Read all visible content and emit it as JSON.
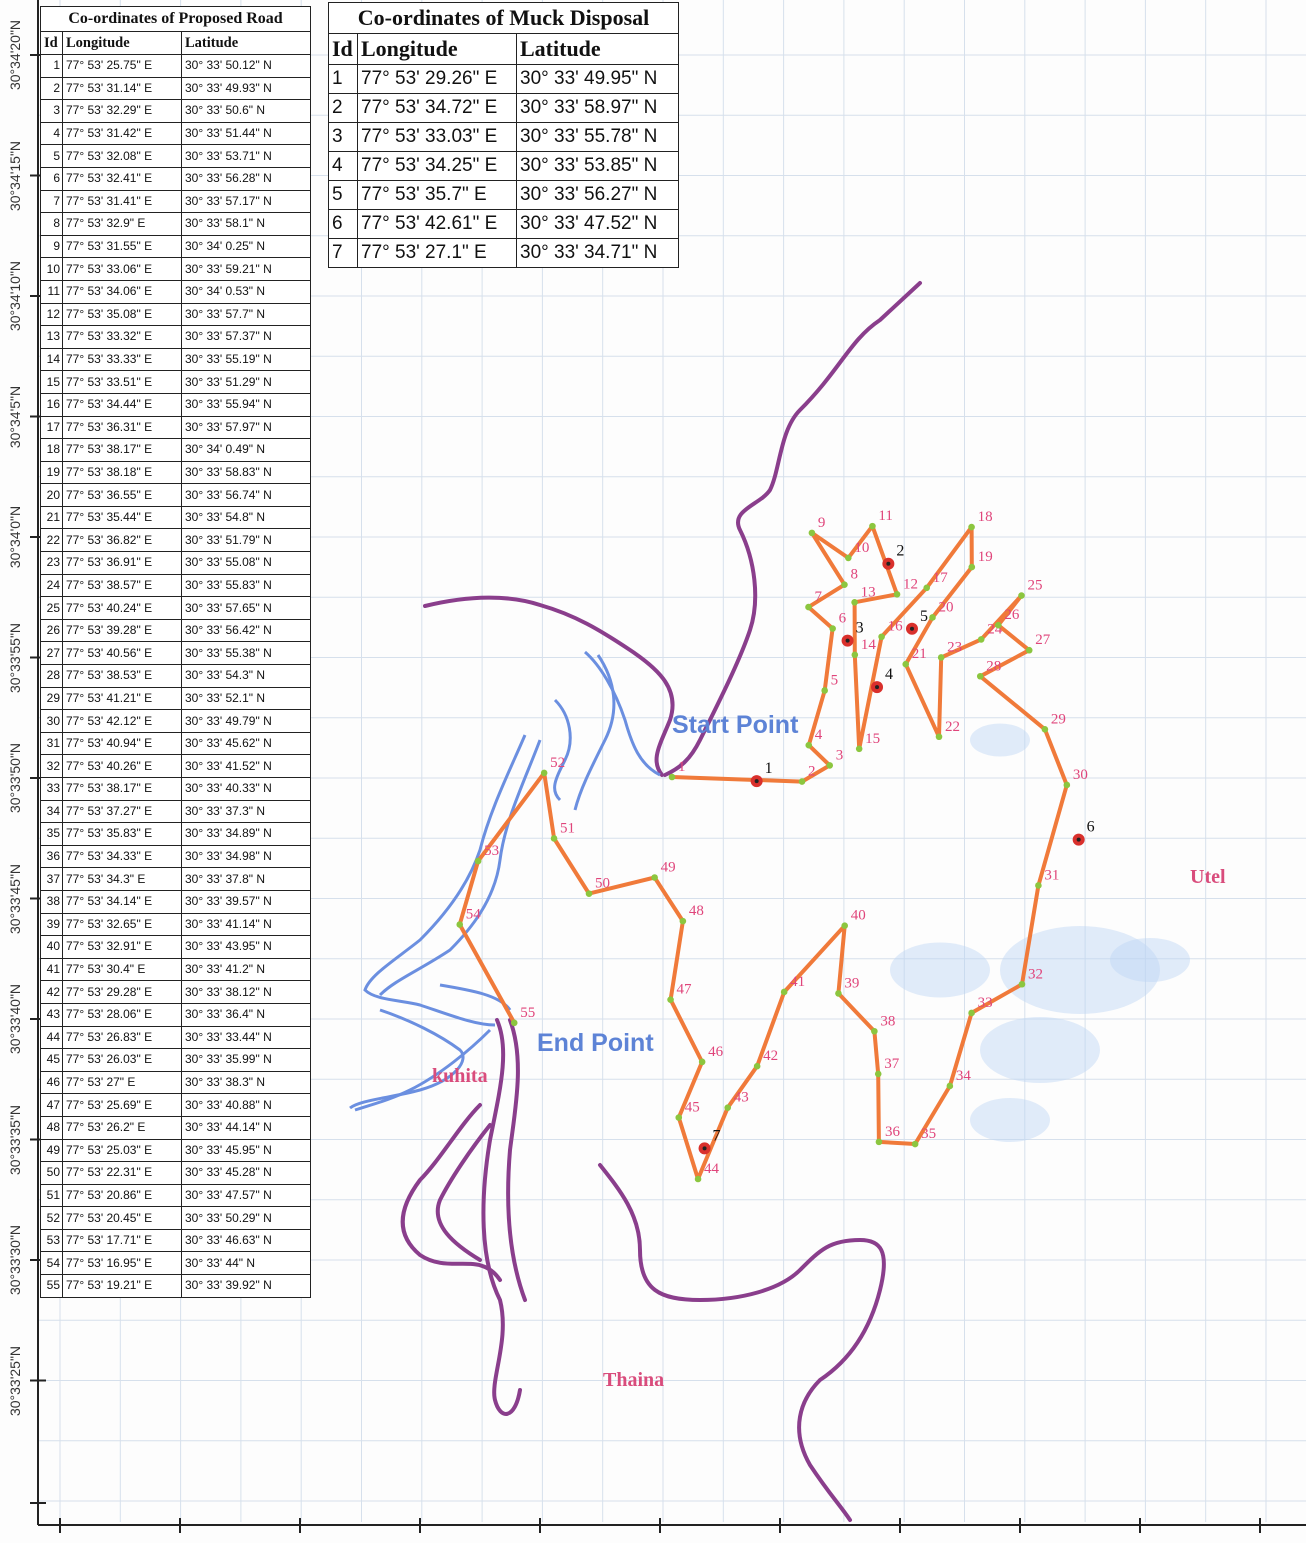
{
  "road_table": {
    "title": "Co-ordinates of Proposed Road",
    "headers": [
      "Id",
      "Longitude",
      "Latitude"
    ],
    "rows": [
      [
        "1",
        "77° 53' 25.75\" E",
        "30° 33' 50.12\" N"
      ],
      [
        "2",
        "77° 53' 31.14\" E",
        "30° 33' 49.93\" N"
      ],
      [
        "3",
        "77° 53' 32.29\" E",
        "30° 33' 50.6\" N"
      ],
      [
        "4",
        "77° 53' 31.42\" E",
        "30° 33' 51.44\" N"
      ],
      [
        "5",
        "77° 53' 32.08\" E",
        "30° 33' 53.71\" N"
      ],
      [
        "6",
        "77° 53' 32.41\" E",
        "30° 33' 56.28\" N"
      ],
      [
        "7",
        "77° 53' 31.41\" E",
        "30° 33' 57.17\" N"
      ],
      [
        "8",
        "77° 53' 32.9\" E",
        "30° 33' 58.1\" N"
      ],
      [
        "9",
        "77° 53' 31.55\" E",
        "30° 34' 0.25\" N"
      ],
      [
        "10",
        "77° 53' 33.06\" E",
        "30° 33' 59.21\" N"
      ],
      [
        "11",
        "77° 53' 34.06\" E",
        "30° 34' 0.53\" N"
      ],
      [
        "12",
        "77° 53' 35.08\" E",
        "30° 33' 57.7\" N"
      ],
      [
        "13",
        "77° 53' 33.32\" E",
        "30° 33' 57.37\" N"
      ],
      [
        "14",
        "77° 53' 33.33\" E",
        "30° 33' 55.19\" N"
      ],
      [
        "15",
        "77° 53' 33.51\" E",
        "30° 33' 51.29\" N"
      ],
      [
        "16",
        "77° 53' 34.44\" E",
        "30° 33' 55.94\" N"
      ],
      [
        "17",
        "77° 53' 36.31\" E",
        "30° 33' 57.97\" N"
      ],
      [
        "18",
        "77° 53' 38.17\" E",
        "30° 34' 0.49\" N"
      ],
      [
        "19",
        "77° 53' 38.18\" E",
        "30° 33' 58.83\" N"
      ],
      [
        "20",
        "77° 53' 36.55\" E",
        "30° 33' 56.74\" N"
      ],
      [
        "21",
        "77° 53' 35.44\" E",
        "30° 33' 54.8\" N"
      ],
      [
        "22",
        "77° 53' 36.82\" E",
        "30° 33' 51.79\" N"
      ],
      [
        "23",
        "77° 53' 36.91\" E",
        "30° 33' 55.08\" N"
      ],
      [
        "24",
        "77° 53' 38.57\" E",
        "30° 33' 55.83\" N"
      ],
      [
        "25",
        "77° 53' 40.24\" E",
        "30° 33' 57.65\" N"
      ],
      [
        "26",
        "77° 53' 39.28\" E",
        "30° 33' 56.42\" N"
      ],
      [
        "27",
        "77° 53' 40.56\" E",
        "30° 33' 55.38\" N"
      ],
      [
        "28",
        "77° 53' 38.53\" E",
        "30° 33' 54.3\" N"
      ],
      [
        "29",
        "77° 53' 41.21\" E",
        "30° 33' 52.1\" N"
      ],
      [
        "30",
        "77° 53' 42.12\" E",
        "30° 33' 49.79\" N"
      ],
      [
        "31",
        "77° 53' 40.94\" E",
        "30° 33' 45.62\" N"
      ],
      [
        "32",
        "77° 53' 40.26\" E",
        "30° 33' 41.52\" N"
      ],
      [
        "33",
        "77° 53' 38.17\" E",
        "30° 33' 40.33\" N"
      ],
      [
        "34",
        "77° 53' 37.27\" E",
        "30° 33' 37.3\" N"
      ],
      [
        "35",
        "77° 53' 35.83\" E",
        "30° 33' 34.89\" N"
      ],
      [
        "36",
        "77° 53' 34.33\" E",
        "30° 33' 34.98\" N"
      ],
      [
        "37",
        "77° 53' 34.3\" E",
        "30° 33' 37.8\" N"
      ],
      [
        "38",
        "77° 53' 34.14\" E",
        "30° 33' 39.57\" N"
      ],
      [
        "39",
        "77° 53' 32.65\" E",
        "30° 33' 41.14\" N"
      ],
      [
        "40",
        "77° 53' 32.91\" E",
        "30° 33' 43.95\" N"
      ],
      [
        "41",
        "77° 53' 30.4\" E",
        "30° 33' 41.2\" N"
      ],
      [
        "42",
        "77° 53' 29.28\" E",
        "30° 33' 38.12\" N"
      ],
      [
        "43",
        "77° 53' 28.06\" E",
        "30° 33' 36.4\" N"
      ],
      [
        "44",
        "77° 53' 26.83\" E",
        "30° 33' 33.44\" N"
      ],
      [
        "45",
        "77° 53' 26.03\" E",
        "30° 33' 35.99\" N"
      ],
      [
        "46",
        "77° 53' 27\" E",
        "30° 33' 38.3\" N"
      ],
      [
        "47",
        "77° 53' 25.69\" E",
        "30° 33' 40.88\" N"
      ],
      [
        "48",
        "77° 53' 26.2\" E",
        "30° 33' 44.14\" N"
      ],
      [
        "49",
        "77° 53' 25.03\" E",
        "30° 33' 45.95\" N"
      ],
      [
        "50",
        "77° 53' 22.31\" E",
        "30° 33' 45.28\" N"
      ],
      [
        "51",
        "77° 53' 20.86\" E",
        "30° 33' 47.57\" N"
      ],
      [
        "52",
        "77° 53' 20.45\" E",
        "30° 33' 50.29\" N"
      ],
      [
        "53",
        "77° 53' 17.71\" E",
        "30° 33' 46.63\" N"
      ],
      [
        "54",
        "77° 53' 16.95\" E",
        "30° 33' 44\" N"
      ],
      [
        "55",
        "77° 53' 19.21\" E",
        "30° 33' 39.92\" N"
      ]
    ]
  },
  "muck_table": {
    "title": "Co-ordinates of Muck Disposal",
    "headers": [
      "Id",
      "Longitude",
      "Latitude"
    ],
    "rows": [
      [
        "1",
        "77° 53' 29.26\" E",
        "30° 33' 49.95\" N"
      ],
      [
        "2",
        "77° 53' 34.72\" E",
        "30° 33' 58.97\" N"
      ],
      [
        "3",
        "77° 53' 33.03\" E",
        "30° 33' 55.78\" N"
      ],
      [
        "4",
        "77° 53' 34.25\" E",
        "30° 33' 53.85\" N"
      ],
      [
        "5",
        "77° 53' 35.7\" E",
        "30° 33' 56.27\" N"
      ],
      [
        "6",
        "77° 53' 42.61\" E",
        "30° 33' 47.52\" N"
      ],
      [
        "7",
        "77° 53' 27.1\" E",
        "30° 33' 34.71\" N"
      ]
    ]
  },
  "axis": {
    "lat_labels": [
      "30°34'20\"N",
      "30°34'15\"N",
      "30°34'10\"N",
      "30°34'5\"N",
      "30°34'0\"N",
      "30°33'55\"N",
      "30°33'50\"N",
      "30°33'45\"N",
      "30°33'40\"N",
      "30°33'35\"N",
      "30°33'30\"N",
      "30°33'25\"N"
    ]
  },
  "map_labels": {
    "start_point": "Start Point",
    "end_point": "End Point",
    "utel": "Utel",
    "kuhita": "kuhita",
    "thaina": "Thaina"
  },
  "colors": {
    "road": "#f07a3a",
    "road_vertex": "#8cc63f",
    "stream": "#6b8fe0",
    "boundary": "#8a3e8c",
    "vertex_label": "#e0457b",
    "muck_marker": "#d9302c",
    "grid": "#d6e0ec",
    "utel_label": "#d94c7c"
  }
}
